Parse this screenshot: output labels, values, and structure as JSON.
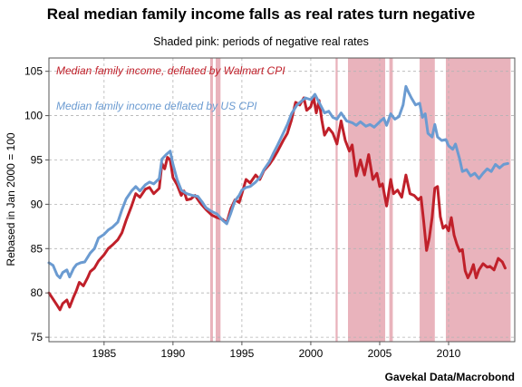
{
  "chart_data": {
    "type": "line",
    "title": "Real median family income falls as real rates turn negative",
    "subtitle": "Shaded pink: periods of negative real rates",
    "ylabel": "Rebased in Jan 2000 = 100",
    "xlabel": "",
    "source": "Gavekal Data/Macrobond",
    "xlim": [
      1981,
      2014.8
    ],
    "ylim": [
      74.5,
      106.5
    ],
    "x_ticks": [
      1985,
      1990,
      1995,
      2000,
      2005,
      2010
    ],
    "y_ticks": [
      75,
      80,
      85,
      90,
      95,
      100,
      105
    ],
    "grid": true,
    "shaded_periods": [
      [
        1992.7,
        1992.9
      ],
      [
        1993.1,
        1993.45
      ],
      [
        2001.8,
        2001.95
      ],
      [
        2002.7,
        2005.4
      ],
      [
        2005.7,
        2005.95
      ],
      [
        2007.9,
        2009.0
      ],
      [
        2009.8,
        2014.5
      ]
    ],
    "colors": {
      "walmart": "#c0202a",
      "us": "#6b9bd1",
      "shade": "#e9b3bc",
      "grid": "#b3b3b3"
    },
    "series": [
      {
        "name": "Median family income, deflated by Walmart CPI",
        "color": "#c0202a",
        "points": [
          [
            1981.0,
            80.0
          ],
          [
            1981.3,
            79.3
          ],
          [
            1981.6,
            78.6
          ],
          [
            1981.8,
            78.1
          ],
          [
            1982.0,
            78.8
          ],
          [
            1982.3,
            79.2
          ],
          [
            1982.5,
            78.4
          ],
          [
            1982.8,
            79.6
          ],
          [
            1983.0,
            80.3
          ],
          [
            1983.2,
            81.2
          ],
          [
            1983.5,
            80.8
          ],
          [
            1983.8,
            81.7
          ],
          [
            1984.0,
            82.4
          ],
          [
            1984.3,
            82.8
          ],
          [
            1984.6,
            83.6
          ],
          [
            1985.0,
            84.3
          ],
          [
            1985.3,
            85.0
          ],
          [
            1985.6,
            85.4
          ],
          [
            1986.0,
            86.0
          ],
          [
            1986.3,
            86.8
          ],
          [
            1986.6,
            88.2
          ],
          [
            1987.0,
            89.8
          ],
          [
            1987.3,
            91.2
          ],
          [
            1987.6,
            90.8
          ],
          [
            1988.0,
            91.7
          ],
          [
            1988.3,
            91.9
          ],
          [
            1988.6,
            91.2
          ],
          [
            1989.0,
            91.8
          ],
          [
            1989.2,
            94.6
          ],
          [
            1989.4,
            94.0
          ],
          [
            1989.6,
            95.3
          ],
          [
            1989.8,
            95.0
          ],
          [
            1990.0,
            93.0
          ],
          [
            1990.3,
            92.2
          ],
          [
            1990.6,
            91.0
          ],
          [
            1990.8,
            91.5
          ],
          [
            1991.0,
            90.5
          ],
          [
            1991.3,
            90.6
          ],
          [
            1991.6,
            91.0
          ],
          [
            1992.0,
            90.1
          ],
          [
            1992.4,
            89.4
          ],
          [
            1992.8,
            88.8
          ],
          [
            1993.2,
            88.5
          ],
          [
            1993.6,
            88.3
          ],
          [
            1993.9,
            87.9
          ],
          [
            1994.2,
            89.5
          ],
          [
            1994.5,
            90.5
          ],
          [
            1994.8,
            90.2
          ],
          [
            1995.0,
            91.2
          ],
          [
            1995.3,
            92.8
          ],
          [
            1995.6,
            92.4
          ],
          [
            1996.0,
            93.3
          ],
          [
            1996.3,
            92.8
          ],
          [
            1996.6,
            93.8
          ],
          [
            1997.0,
            94.5
          ],
          [
            1997.3,
            95.2
          ],
          [
            1997.6,
            96.0
          ],
          [
            1998.0,
            97.2
          ],
          [
            1998.3,
            98.0
          ],
          [
            1998.6,
            99.5
          ],
          [
            1998.9,
            101.5
          ],
          [
            1999.2,
            101.2
          ],
          [
            1999.5,
            102.0
          ],
          [
            1999.7,
            100.6
          ],
          [
            2000.0,
            101.0
          ],
          [
            2000.2,
            102.1
          ],
          [
            2000.4,
            100.3
          ],
          [
            2000.6,
            101.7
          ],
          [
            2000.8,
            99.5
          ],
          [
            2001.0,
            97.8
          ],
          [
            2001.3,
            98.6
          ],
          [
            2001.6,
            98.0
          ],
          [
            2001.9,
            96.8
          ],
          [
            2002.2,
            99.4
          ],
          [
            2002.5,
            97.2
          ],
          [
            2002.8,
            96.0
          ],
          [
            2003.0,
            96.7
          ],
          [
            2003.3,
            93.2
          ],
          [
            2003.6,
            95.0
          ],
          [
            2003.9,
            93.3
          ],
          [
            2004.2,
            95.6
          ],
          [
            2004.5,
            92.8
          ],
          [
            2004.8,
            93.5
          ],
          [
            2005.0,
            92.0
          ],
          [
            2005.2,
            92.3
          ],
          [
            2005.5,
            89.8
          ],
          [
            2005.8,
            92.8
          ],
          [
            2006.0,
            91.2
          ],
          [
            2006.3,
            91.6
          ],
          [
            2006.6,
            90.8
          ],
          [
            2006.9,
            93.3
          ],
          [
            2007.2,
            91.2
          ],
          [
            2007.5,
            91.0
          ],
          [
            2007.8,
            90.5
          ],
          [
            2008.0,
            90.8
          ],
          [
            2008.2,
            88.0
          ],
          [
            2008.4,
            84.8
          ],
          [
            2008.6,
            86.2
          ],
          [
            2008.8,
            88.5
          ],
          [
            2009.0,
            91.8
          ],
          [
            2009.2,
            92.0
          ],
          [
            2009.4,
            88.6
          ],
          [
            2009.6,
            87.3
          ],
          [
            2009.8,
            87.6
          ],
          [
            2010.0,
            87.0
          ],
          [
            2010.2,
            88.5
          ],
          [
            2010.4,
            86.5
          ],
          [
            2010.6,
            85.5
          ],
          [
            2010.8,
            84.7
          ],
          [
            2011.0,
            84.9
          ],
          [
            2011.2,
            82.5
          ],
          [
            2011.4,
            81.7
          ],
          [
            2011.6,
            82.3
          ],
          [
            2011.8,
            83.2
          ],
          [
            2012.0,
            81.7
          ],
          [
            2012.2,
            82.6
          ],
          [
            2012.5,
            83.3
          ],
          [
            2012.8,
            82.9
          ],
          [
            2013.0,
            83.0
          ],
          [
            2013.3,
            82.6
          ],
          [
            2013.6,
            83.9
          ],
          [
            2013.9,
            83.5
          ],
          [
            2014.1,
            82.8
          ]
        ]
      },
      {
        "name": "Median family income deflated by US CPI",
        "color": "#6b9bd1",
        "points": [
          [
            1981.0,
            83.4
          ],
          [
            1981.3,
            83.1
          ],
          [
            1981.6,
            82.0
          ],
          [
            1981.8,
            81.7
          ],
          [
            1982.0,
            82.3
          ],
          [
            1982.3,
            82.6
          ],
          [
            1982.5,
            81.8
          ],
          [
            1982.8,
            82.8
          ],
          [
            1983.0,
            83.2
          ],
          [
            1983.3,
            83.4
          ],
          [
            1983.6,
            83.5
          ],
          [
            1984.0,
            84.5
          ],
          [
            1984.3,
            85.0
          ],
          [
            1984.6,
            86.2
          ],
          [
            1985.0,
            86.6
          ],
          [
            1985.3,
            87.1
          ],
          [
            1985.6,
            87.4
          ],
          [
            1986.0,
            88.0
          ],
          [
            1986.3,
            89.4
          ],
          [
            1986.6,
            90.6
          ],
          [
            1987.0,
            91.5
          ],
          [
            1987.3,
            92.0
          ],
          [
            1987.6,
            91.5
          ],
          [
            1988.0,
            92.2
          ],
          [
            1988.3,
            92.5
          ],
          [
            1988.6,
            92.3
          ],
          [
            1989.0,
            92.9
          ],
          [
            1989.2,
            95.1
          ],
          [
            1989.5,
            95.6
          ],
          [
            1989.8,
            96.0
          ],
          [
            1990.0,
            94.5
          ],
          [
            1990.3,
            92.8
          ],
          [
            1990.6,
            91.6
          ],
          [
            1991.0,
            91.2
          ],
          [
            1991.4,
            91.0
          ],
          [
            1991.8,
            90.9
          ],
          [
            1992.1,
            90.3
          ],
          [
            1992.4,
            89.6
          ],
          [
            1992.8,
            89.2
          ],
          [
            1993.2,
            88.9
          ],
          [
            1993.6,
            88.2
          ],
          [
            1993.9,
            87.8
          ],
          [
            1994.2,
            89.0
          ],
          [
            1994.5,
            90.4
          ],
          [
            1994.8,
            91.0
          ],
          [
            1995.0,
            91.6
          ],
          [
            1995.3,
            91.9
          ],
          [
            1995.6,
            92.0
          ],
          [
            1996.0,
            92.5
          ],
          [
            1996.3,
            93.0
          ],
          [
            1996.6,
            93.9
          ],
          [
            1997.0,
            94.8
          ],
          [
            1997.3,
            95.8
          ],
          [
            1997.6,
            96.7
          ],
          [
            1998.0,
            98.0
          ],
          [
            1998.3,
            99.0
          ],
          [
            1998.6,
            100.2
          ],
          [
            1999.0,
            101.2
          ],
          [
            1999.3,
            101.6
          ],
          [
            1999.6,
            102.0
          ],
          [
            2000.0,
            101.8
          ],
          [
            2000.3,
            102.4
          ],
          [
            2000.6,
            101.5
          ],
          [
            2001.0,
            100.3
          ],
          [
            2001.3,
            100.5
          ],
          [
            2001.6,
            99.8
          ],
          [
            2001.9,
            99.6
          ],
          [
            2002.2,
            100.3
          ],
          [
            2002.6,
            99.4
          ],
          [
            2003.0,
            99.2
          ],
          [
            2003.3,
            98.9
          ],
          [
            2003.6,
            99.3
          ],
          [
            2004.0,
            98.8
          ],
          [
            2004.3,
            99.0
          ],
          [
            2004.6,
            98.7
          ],
          [
            2005.0,
            99.3
          ],
          [
            2005.3,
            99.7
          ],
          [
            2005.5,
            98.9
          ],
          [
            2005.8,
            100.2
          ],
          [
            2006.1,
            99.6
          ],
          [
            2006.4,
            99.9
          ],
          [
            2006.7,
            101.2
          ],
          [
            2006.9,
            103.3
          ],
          [
            2007.1,
            102.6
          ],
          [
            2007.3,
            102.0
          ],
          [
            2007.6,
            101.2
          ],
          [
            2007.9,
            101.4
          ],
          [
            2008.1,
            99.8
          ],
          [
            2008.3,
            100.2
          ],
          [
            2008.5,
            98.0
          ],
          [
            2008.8,
            97.6
          ],
          [
            2009.0,
            99.0
          ],
          [
            2009.2,
            97.6
          ],
          [
            2009.5,
            97.2
          ],
          [
            2009.8,
            97.3
          ],
          [
            2010.0,
            96.6
          ],
          [
            2010.3,
            96.2
          ],
          [
            2010.5,
            96.8
          ],
          [
            2010.8,
            95.1
          ],
          [
            2011.0,
            93.7
          ],
          [
            2011.3,
            93.9
          ],
          [
            2011.6,
            93.2
          ],
          [
            2011.9,
            93.5
          ],
          [
            2012.2,
            92.9
          ],
          [
            2012.5,
            93.5
          ],
          [
            2012.8,
            94.0
          ],
          [
            2013.1,
            93.7
          ],
          [
            2013.4,
            94.5
          ],
          [
            2013.7,
            94.1
          ],
          [
            2014.0,
            94.5
          ],
          [
            2014.3,
            94.6
          ]
        ]
      }
    ]
  }
}
